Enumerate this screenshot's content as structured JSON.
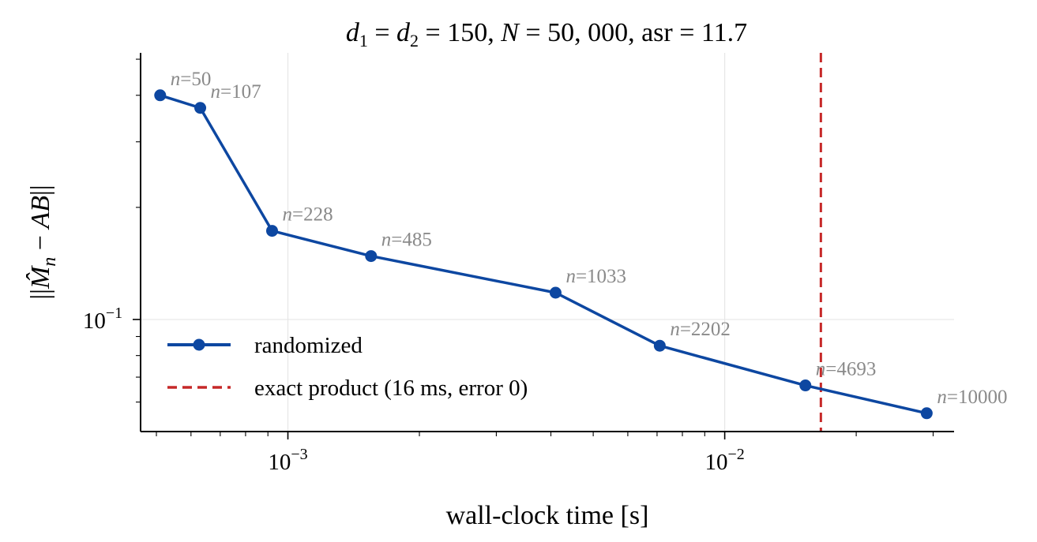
{
  "chart_data": {
    "type": "line",
    "title": "d1 = d2 = 150,  N = 50,000,  asr = 11.7",
    "xlabel": "wall-clock time [s]",
    "ylabel": "||M̂n − AB||",
    "xscale": "log",
    "yscale": "log",
    "xlim": [
      0.00046,
      0.0335
    ],
    "ylim": [
      0.05,
      0.52
    ],
    "grid": true,
    "legend_position": "lower-left",
    "x_ticks": [
      {
        "value": 0.001,
        "base": "10",
        "exp": "−3"
      },
      {
        "value": 0.01,
        "base": "10",
        "exp": "−2"
      }
    ],
    "y_ticks": [
      {
        "value": 0.1,
        "base": "10",
        "exp": "−1"
      }
    ],
    "series": [
      {
        "name": "randomized",
        "color": "#0d47a1",
        "style": "solid-with-markers",
        "points": [
          {
            "x": 0.00051,
            "y": 0.4,
            "label": "n=50"
          },
          {
            "x": 0.00063,
            "y": 0.37,
            "label": "n=107"
          },
          {
            "x": 0.00092,
            "y": 0.173,
            "label": "n=228"
          },
          {
            "x": 0.00155,
            "y": 0.148,
            "label": "n=485"
          },
          {
            "x": 0.0041,
            "y": 0.118,
            "label": "n=1033"
          },
          {
            "x": 0.0071,
            "y": 0.085,
            "label": "n=2202"
          },
          {
            "x": 0.0153,
            "y": 0.0665,
            "label": "n=4693"
          },
          {
            "x": 0.029,
            "y": 0.056,
            "label": "n=10000"
          }
        ]
      },
      {
        "name": "exact product (16 ms, error 0)",
        "color": "#c62828",
        "style": "dashed-vertical",
        "x": 0.0166
      }
    ]
  }
}
